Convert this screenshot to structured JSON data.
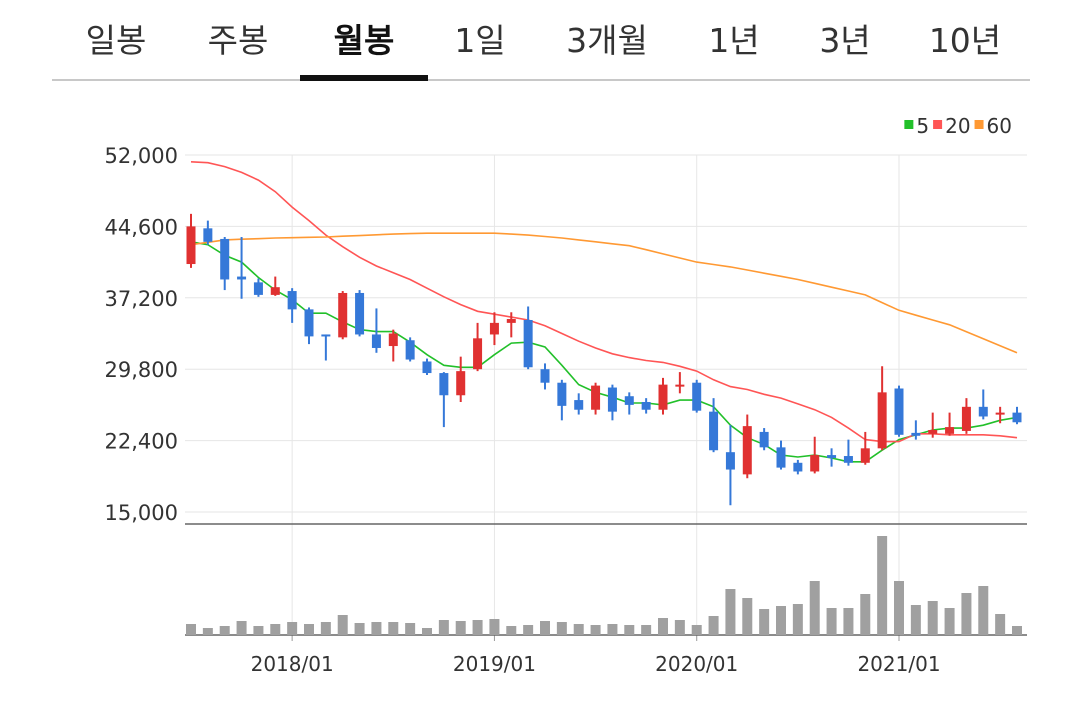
{
  "tabs": {
    "items": [
      "일봉",
      "주봉",
      "월봉",
      "1일",
      "3개월",
      "1년",
      "3년",
      "10년"
    ],
    "selected": 2
  },
  "chart_data": {
    "type": "candlestick",
    "categories": [
      null,
      null,
      null,
      null,
      null,
      null,
      "2018/01",
      null,
      null,
      null,
      null,
      null,
      null,
      null,
      null,
      null,
      null,
      null,
      "2019/01",
      null,
      null,
      null,
      null,
      null,
      null,
      null,
      null,
      null,
      null,
      null,
      "2020/01",
      null,
      null,
      null,
      null,
      null,
      null,
      null,
      null,
      null,
      null,
      null,
      "2021/01",
      null,
      null,
      null,
      null,
      null,
      null,
      null
    ],
    "open": [
      40700,
      44400,
      43300,
      39400,
      38800,
      37500,
      37900,
      36000,
      33400,
      33100,
      37700,
      33400,
      32200,
      32800,
      30600,
      29400,
      27100,
      29800,
      33400,
      34600,
      34900,
      29800,
      28400,
      26600,
      25600,
      27900,
      27000,
      26400,
      25600,
      28000,
      28400,
      25400,
      21200,
      18900,
      23300,
      21700,
      20100,
      19200,
      20900,
      20800,
      20100,
      21600,
      27800,
      23200,
      23100,
      23100,
      23400,
      25900,
      25100,
      25300
    ],
    "high": [
      45900,
      45200,
      43500,
      43500,
      39200,
      39400,
      38200,
      36200,
      33400,
      37900,
      38000,
      36100,
      33900,
      33100,
      30900,
      29500,
      31100,
      34600,
      35700,
      35700,
      36300,
      30400,
      28700,
      27300,
      28400,
      28200,
      27400,
      26800,
      28900,
      29500,
      28700,
      26800,
      24000,
      25100,
      23700,
      22400,
      20400,
      22800,
      21600,
      22500,
      23300,
      30100,
      28100,
      24500,
      25300,
      25300,
      26800,
      27700,
      25900,
      25900
    ],
    "low": [
      40300,
      42700,
      38000,
      37100,
      37300,
      37400,
      34600,
      32400,
      30700,
      32900,
      33200,
      31500,
      30600,
      30600,
      29200,
      23800,
      26400,
      29600,
      32300,
      33100,
      29800,
      27700,
      24500,
      25100,
      25100,
      24500,
      25100,
      25200,
      25100,
      27300,
      25300,
      21200,
      15700,
      18500,
      21400,
      19400,
      18900,
      19000,
      19700,
      19800,
      19900,
      21400,
      22800,
      22500,
      22700,
      22900,
      23100,
      24600,
      24200,
      24100
    ],
    "close": [
      44600,
      43000,
      39100,
      39100,
      37500,
      38300,
      36000,
      33200,
      33200,
      37700,
      33400,
      32000,
      33500,
      30800,
      29400,
      27100,
      29600,
      33000,
      34600,
      35000,
      30000,
      28400,
      26000,
      25600,
      28100,
      25400,
      26100,
      25600,
      28200,
      28200,
      25500,
      21400,
      19400,
      23900,
      21700,
      19600,
      19200,
      20900,
      20600,
      20100,
      21600,
      27400,
      23000,
      22900,
      23500,
      23800,
      25900,
      24900,
      25300,
      24300
    ],
    "up_color": "#e03131",
    "down_color": "#3578d8",
    "series": [
      {
        "name": "5",
        "color": "#22c02a",
        "values": [
          43000,
          42700,
          41600,
          40900,
          39300,
          38000,
          37000,
          35600,
          35600,
          34700,
          33900,
          33700,
          33700,
          32600,
          31300,
          30200,
          30000,
          30000,
          31300,
          32500,
          32600,
          32100,
          30200,
          28200,
          27400,
          26900,
          26300,
          26300,
          26100,
          26600,
          26600,
          25900,
          24000,
          22700,
          22000,
          20900,
          20700,
          20900,
          20600,
          20200,
          20200,
          21400,
          22500,
          23000,
          23500,
          23700,
          23700,
          24000,
          24500,
          24800
        ]
      },
      {
        "name": "20",
        "color": "#ff5555",
        "values": [
          51300,
          51200,
          50800,
          50200,
          49400,
          48200,
          46600,
          45200,
          43700,
          42500,
          41400,
          40500,
          39800,
          39100,
          38200,
          37300,
          36500,
          35800,
          35500,
          35200,
          34900,
          34300,
          33500,
          32700,
          32000,
          31400,
          31000,
          30700,
          30500,
          30100,
          29600,
          28700,
          28000,
          27700,
          27200,
          26800,
          26200,
          25600,
          24800,
          23700,
          22500,
          22300,
          22300,
          23100,
          23100,
          23000,
          23000,
          23000,
          22900,
          22700
        ]
      },
      {
        "name": "60",
        "color": "#ff9933",
        "values": [
          42700,
          42950,
          43200,
          43270,
          43330,
          43400,
          43430,
          43470,
          43500,
          43580,
          43650,
          43730,
          43800,
          43850,
          43900,
          43900,
          43900,
          43900,
          43900,
          43800,
          43700,
          43550,
          43400,
          43200,
          43000,
          42800,
          42600,
          42180,
          41750,
          41320,
          40900,
          40650,
          40400,
          40080,
          39750,
          39430,
          39100,
          38700,
          38300,
          37900,
          37500,
          36700,
          35900,
          35400,
          34900,
          34400,
          33680,
          32950,
          32230,
          31500
        ]
      }
    ],
    "volume": [
      11,
      7,
      9,
      14,
      9,
      11,
      13,
      11,
      13,
      20,
      12,
      13,
      13,
      12,
      7,
      15,
      14,
      15,
      16,
      9,
      10,
      14,
      13,
      11,
      10,
      11,
      10,
      10,
      17,
      15,
      10,
      19,
      46,
      37,
      26,
      29,
      31,
      54,
      27,
      27,
      41,
      99,
      54,
      30,
      34,
      27,
      42,
      49,
      21,
      9
    ],
    "volume_color": "#a0a0a0",
    "volume_ylim": [
      0,
      100
    ],
    "ylim": [
      15000,
      52000
    ],
    "yticks": [
      {
        "value": 52000,
        "label": "52,000"
      },
      {
        "value": 44600,
        "label": "44,600"
      },
      {
        "value": 37200,
        "label": "37,200"
      },
      {
        "value": 29800,
        "label": "29,800"
      },
      {
        "value": 22400,
        "label": "22,400"
      },
      {
        "value": 15000,
        "label": "15,000"
      }
    ],
    "grid": true,
    "legend": "top-right"
  }
}
